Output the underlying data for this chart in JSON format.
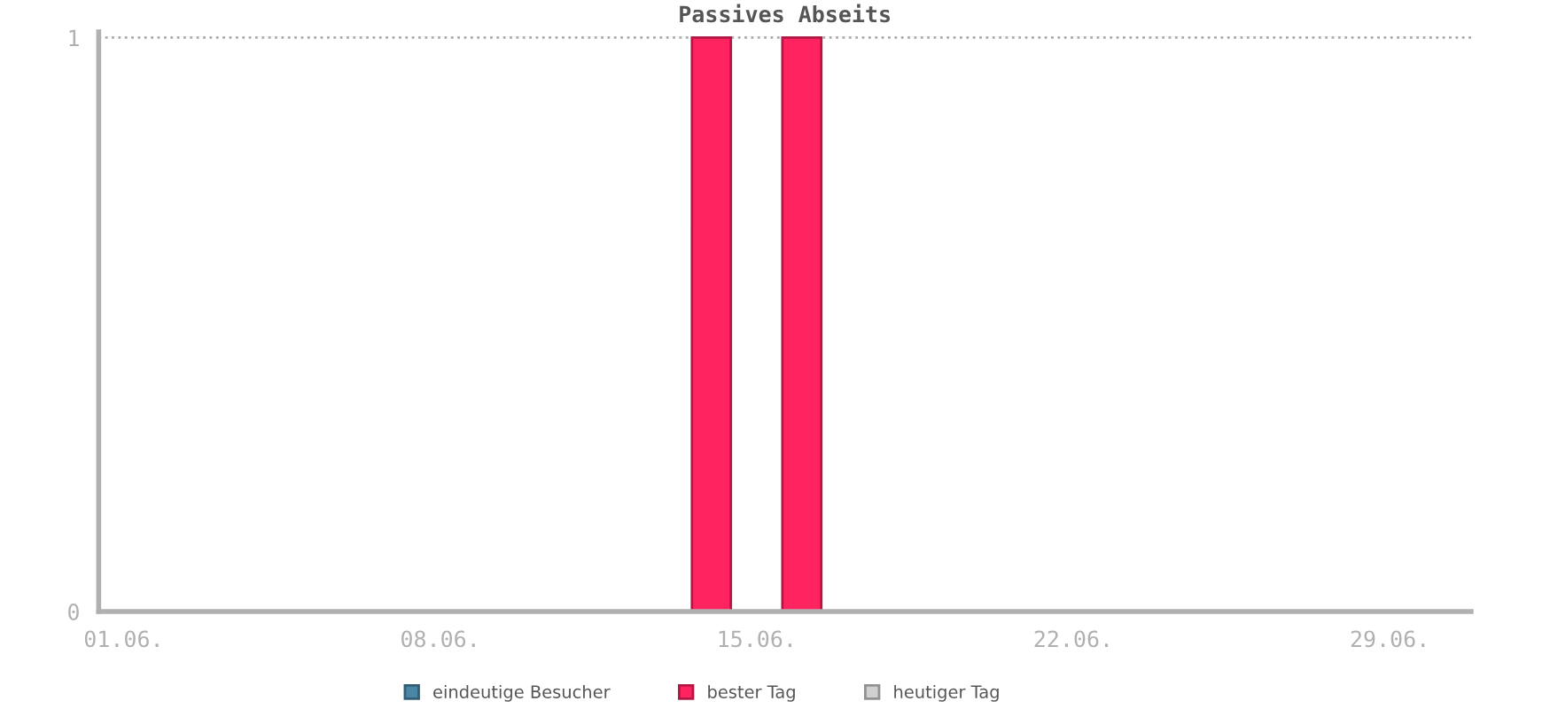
{
  "chart_data": {
    "type": "bar",
    "title": "Passives Abseits",
    "categories": [
      "01.06.",
      null,
      null,
      null,
      null,
      null,
      null,
      "08.06.",
      null,
      null,
      null,
      null,
      null,
      null,
      "15.06.",
      null,
      null,
      null,
      null,
      null,
      null,
      "22.06.",
      null,
      null,
      null,
      null,
      null,
      null,
      "29.06.",
      null
    ],
    "series": [
      {
        "name": "eindeutige Besucher",
        "color": "#4a86a6",
        "values": [
          null,
          null,
          null,
          null,
          null,
          null,
          null,
          null,
          null,
          null,
          null,
          null,
          null,
          null,
          null,
          null,
          null,
          null,
          null,
          null,
          null,
          null,
          null,
          null,
          null,
          null,
          null,
          null,
          null,
          null
        ]
      },
      {
        "name": "bester Tag",
        "color": "#ff2360",
        "values": [
          null,
          null,
          null,
          null,
          null,
          null,
          null,
          null,
          null,
          null,
          null,
          null,
          null,
          1,
          null,
          1,
          null,
          null,
          null,
          null,
          null,
          null,
          null,
          null,
          null,
          null,
          null,
          null,
          null,
          null
        ]
      },
      {
        "name": "heutiger Tag",
        "color": "#d0d0d0",
        "values": [
          null,
          null,
          null,
          null,
          null,
          null,
          null,
          null,
          null,
          null,
          null,
          null,
          null,
          null,
          null,
          null,
          null,
          null,
          null,
          null,
          null,
          null,
          null,
          null,
          null,
          null,
          null,
          null,
          null,
          null
        ]
      }
    ],
    "ylim": [
      0,
      1.01
    ],
    "yticks": [
      0,
      1
    ],
    "grid": "y",
    "legend": "bottom"
  }
}
